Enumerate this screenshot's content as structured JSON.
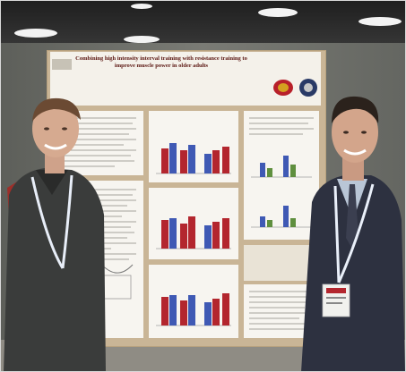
{
  "photo": {
    "poster_title": "Combining high intensity interval training with resistance training to\nimprove muscle power in older adults"
  },
  "colors": {
    "ceiling": "#2b2b2b",
    "wall": "#6e6f6a",
    "poster_bg": "#c9b596",
    "poster_header": "#f4f1ea",
    "panel_bg": "#f7f5f0",
    "bar_red": "#b3262e",
    "bar_blue": "#3f59b4",
    "bar_green": "#5f8f3e"
  }
}
